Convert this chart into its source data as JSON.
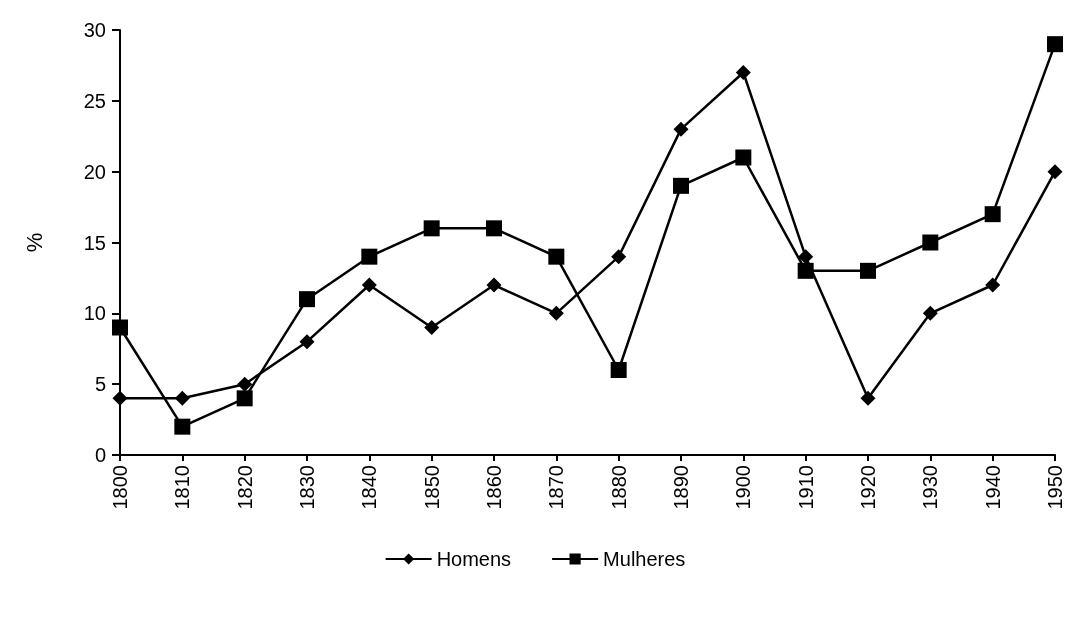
{
  "chart_data": {
    "type": "line",
    "ylabel": "%",
    "categories": [
      "1800",
      "1810",
      "1820",
      "1830",
      "1840",
      "1850",
      "1860",
      "1870",
      "1880",
      "1890",
      "1900",
      "1910",
      "1920",
      "1930",
      "1940",
      "1950"
    ],
    "series": [
      {
        "name": "Homens",
        "color": "#000000",
        "marker": "diamond",
        "values": [
          4,
          4,
          5,
          8,
          12,
          9,
          12,
          10,
          14,
          23,
          27,
          14,
          4,
          10,
          12,
          20
        ]
      },
      {
        "name": "Mulheres",
        "color": "#000000",
        "marker": "square",
        "values": [
          9,
          2,
          4,
          11,
          14,
          16,
          16,
          14,
          6,
          19,
          21,
          13,
          13,
          15,
          17,
          29
        ]
      }
    ],
    "ylim": [
      0,
      30
    ],
    "yticks": [
      0,
      5,
      10,
      15,
      20,
      25,
      30
    ],
    "grid": false,
    "legend": "bottom",
    "line_style": "solid"
  }
}
